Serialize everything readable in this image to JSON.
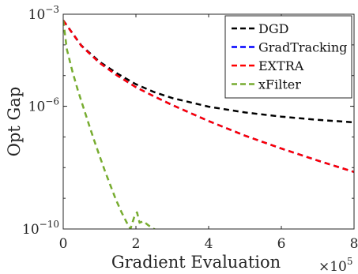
{
  "chart_data": {
    "type": "line",
    "xlabel": "Gradient Evaluation",
    "ylabel": "Opt Gap",
    "x_multiplier_label": "×10",
    "x_multiplier_exp": "5",
    "xlim": [
      0,
      8
    ],
    "ylim": [
      1e-10,
      0.001
    ],
    "y_scale": "log",
    "x_ticks": [
      {
        "value": 0,
        "label": "0"
      },
      {
        "value": 2,
        "label": "2"
      },
      {
        "value": 4,
        "label": "4"
      },
      {
        "value": 6,
        "label": "6"
      },
      {
        "value": 8,
        "label": "8"
      }
    ],
    "y_ticks": [
      {
        "value": 0.001,
        "base": "10",
        "exp": "−3"
      },
      {
        "value": 1e-06,
        "base": "10",
        "exp": "−6"
      },
      {
        "value": 1e-10,
        "base": "10",
        "exp": "−10"
      }
    ],
    "legend_position": "top-right",
    "grid": false,
    "series": [
      {
        "name": "DGD",
        "color": "#000000",
        "style": "dashed",
        "x": [
          0,
          0.5,
          1.0,
          1.5,
          2.0,
          2.5,
          3.0,
          4.0,
          5.0,
          6.0,
          7.0,
          8.0
        ],
        "y": [
          0.00063,
          9.5e-05,
          2.8e-05,
          1.14e-05,
          5.2e-06,
          2.9e-06,
          1.85e-06,
          9.7e-07,
          6.3e-07,
          4.6e-07,
          3.6e-07,
          3e-07
        ]
      },
      {
        "name": "GradTracking",
        "color": "#0000ff",
        "style": "dashed",
        "x": [
          0,
          0.5,
          1.0,
          1.5,
          2.0,
          2.5,
          3.0,
          4.0,
          5.0,
          6.0,
          7.0,
          8.0
        ],
        "y": [
          0.00063,
          9.3e-05,
          2.6e-05,
          9.8e-06,
          4.2e-06,
          2.1e-06,
          1.1e-06,
          3.3e-07,
          1.1e-07,
          4.2e-08,
          1.7e-08,
          7.2e-09
        ]
      },
      {
        "name": "EXTRA",
        "color": "#ff0000",
        "style": "dashed",
        "x": [
          0,
          0.5,
          1.0,
          1.5,
          2.0,
          2.5,
          3.0,
          4.0,
          5.0,
          6.0,
          7.0,
          8.0
        ],
        "y": [
          0.00063,
          9.3e-05,
          2.6e-05,
          9.8e-06,
          4.2e-06,
          2.1e-06,
          1.1e-06,
          3.3e-07,
          1.1e-07,
          4.2e-08,
          1.7e-08,
          7.2e-09
        ]
      },
      {
        "name": "xFilter",
        "color": "#77ac30",
        "style": "dashed",
        "x": [
          0,
          0.1,
          0.25,
          0.4,
          0.55,
          0.7,
          0.85,
          1.0,
          1.15,
          1.3,
          1.45,
          1.6,
          1.75,
          1.85,
          1.95,
          2.03,
          2.1,
          2.2,
          2.35,
          2.5,
          2.65,
          2.8,
          2.95
        ],
        "y": [
          0.00063,
          7.2e-05,
          1.4e-05,
          3.4e-06,
          9.5e-07,
          2.7e-07,
          7.8e-08,
          2.4e-08,
          7.6e-09,
          2.6e-09,
          9e-10,
          3.6e-10,
          1.6e-10,
          1e-10,
          2.4e-10,
          3.5e-10,
          1.6e-10,
          1.8e-10,
          1.3e-10,
          1e-10,
          8e-11,
          6e-11,
          5e-11
        ]
      }
    ]
  }
}
